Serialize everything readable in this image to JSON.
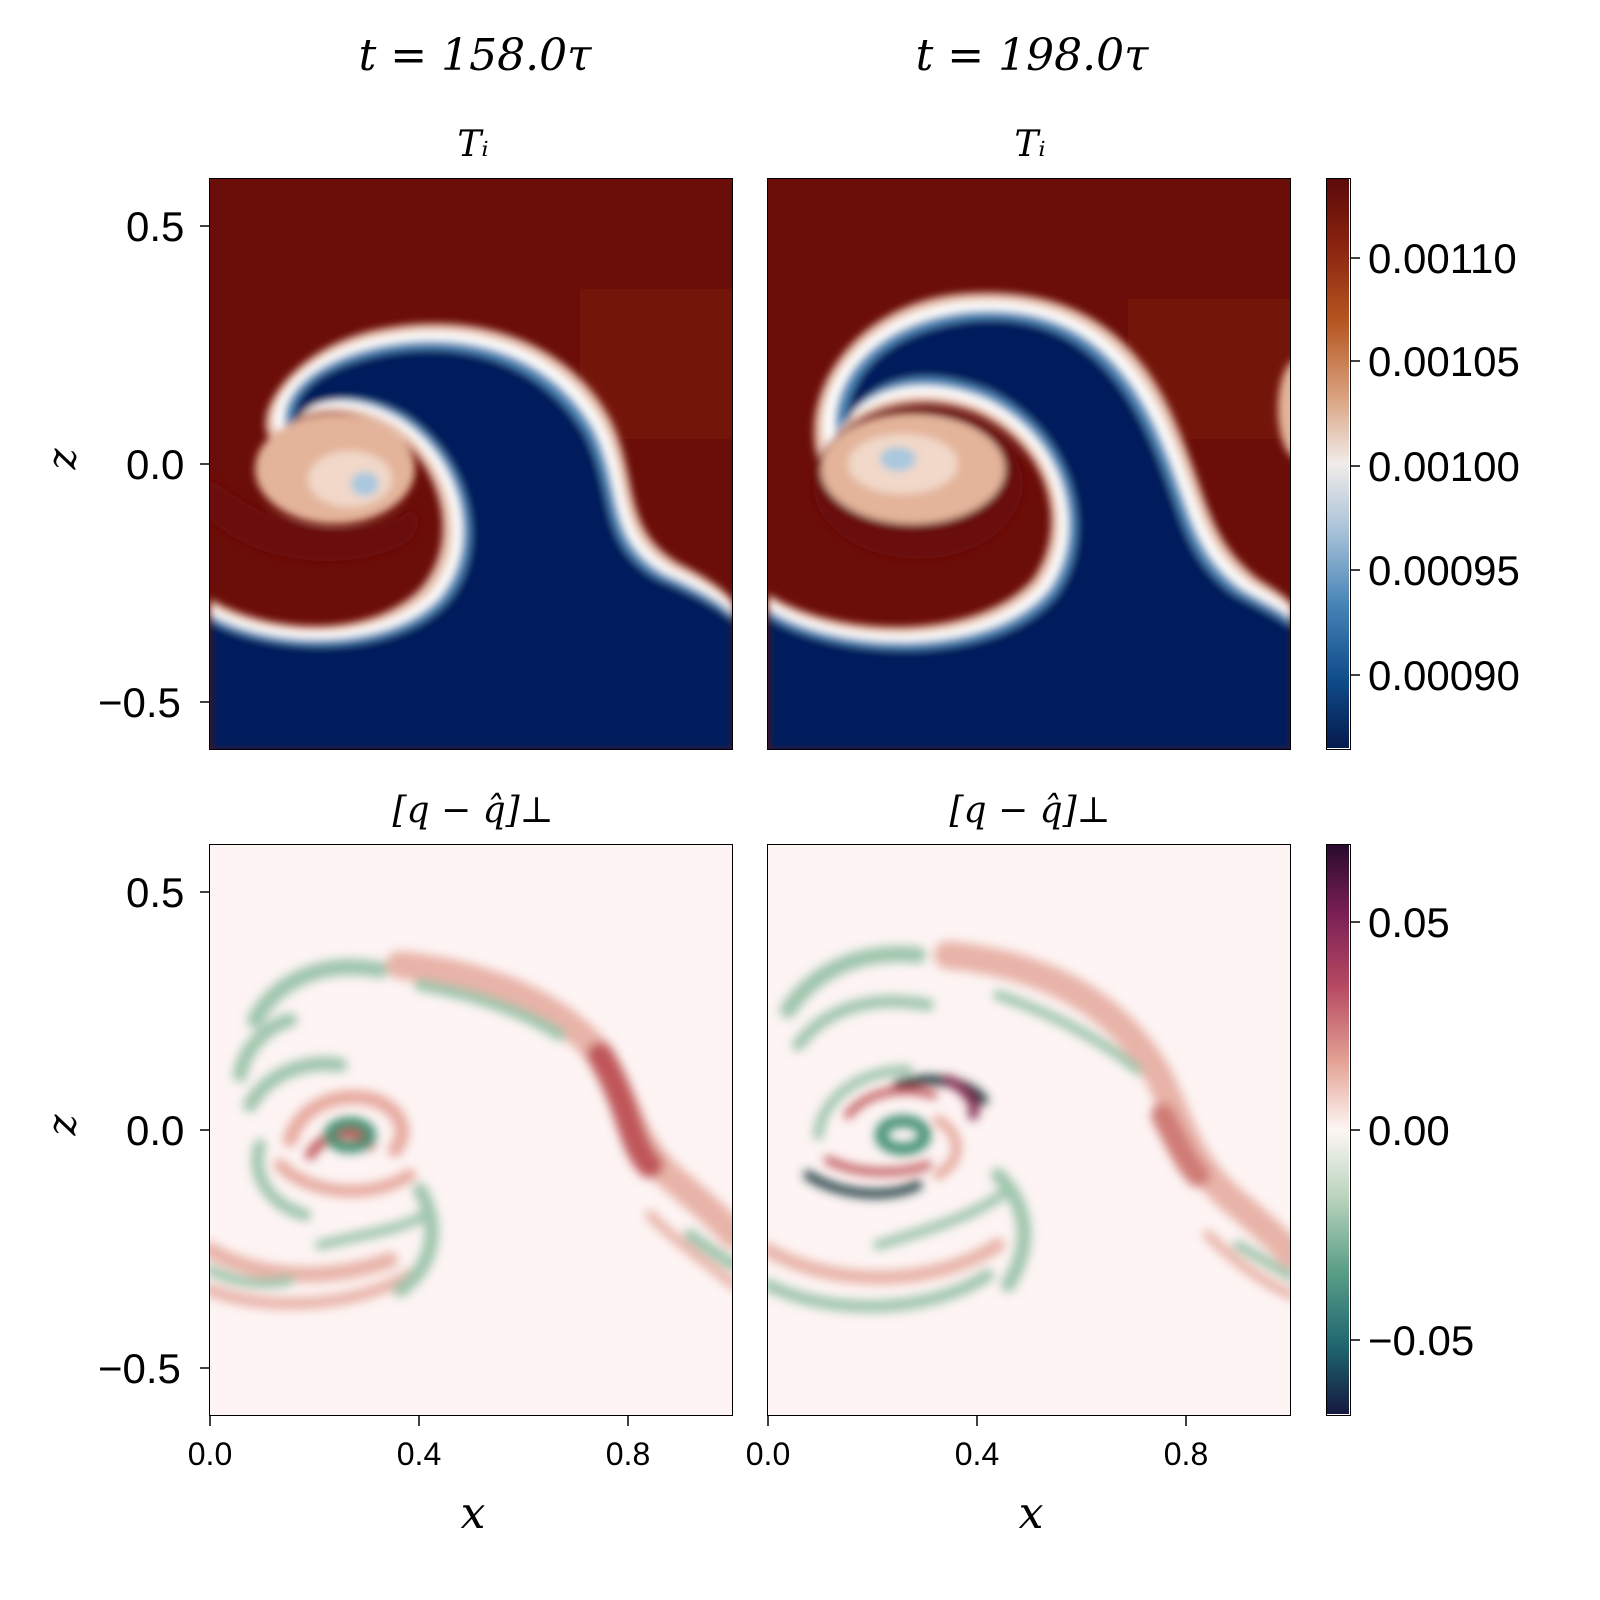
{
  "figure": {
    "columns": [
      {
        "time_label": "t = 158.0τ"
      },
      {
        "time_label": "t = 198.0τ"
      }
    ],
    "rows": [
      {
        "panel_title": "T_i",
        "display_title": "Tᵢ"
      },
      {
        "panel_title": "[q − q̂]⊥",
        "display_title": "[q − q̂]⊥"
      }
    ],
    "axis": {
      "xlabel": "x",
      "ylabel": "z"
    }
  },
  "chart_data": [
    {
      "type": "heatmap",
      "title": "T_i",
      "column_title": "t = 158.0τ",
      "xlabel": "",
      "ylabel": "z",
      "xlim": [
        0.0,
        1.0
      ],
      "ylim": [
        -0.6,
        0.6
      ],
      "yticks": [
        "0.5",
        "0.0",
        "−0.5"
      ],
      "colorbar_range": [
        0.000865,
        0.001135
      ],
      "colormap": "balance (blue-white-red)"
    },
    {
      "type": "heatmap",
      "title": "T_i",
      "column_title": "t = 198.0τ",
      "xlabel": "",
      "ylabel": "",
      "xlim": [
        0.0,
        1.0
      ],
      "ylim": [
        -0.6,
        0.6
      ],
      "colorbar_ticks": [
        "0.00110",
        "0.00105",
        "0.00100",
        "0.00095",
        "0.00090"
      ],
      "colorbar_range": [
        0.000865,
        0.001135
      ],
      "colormap": "balance (blue-white-red)"
    },
    {
      "type": "heatmap",
      "title": "[q − q̂]⊥",
      "column_title": "t = 158.0τ",
      "xlabel": "x",
      "ylabel": "z",
      "xlim": [
        0.0,
        1.0
      ],
      "ylim": [
        -0.6,
        0.6
      ],
      "xticks": [
        "0.0",
        "0.4",
        "0.8"
      ],
      "yticks": [
        "0.5",
        "0.0",
        "−0.5"
      ],
      "colorbar_range": [
        -0.068,
        0.068
      ],
      "colormap": "curl (green-white-red)"
    },
    {
      "type": "heatmap",
      "title": "[q − q̂]⊥",
      "column_title": "t = 198.0τ",
      "xlabel": "x",
      "ylabel": "",
      "xlim": [
        0.0,
        1.0
      ],
      "ylim": [
        -0.6,
        0.6
      ],
      "xticks": [
        "0.0",
        "0.4",
        "0.8"
      ],
      "colorbar_ticks": [
        "0.05",
        "0.00",
        "−0.05"
      ],
      "colorbar_range": [
        -0.068,
        0.068
      ],
      "colormap": "curl (green-white-red)"
    }
  ],
  "colors": {
    "Ti_high": "#6b0d08",
    "Ti_low": "#031a5c",
    "Ti_mid": "#f3eae6",
    "q_background": "#fdf4f3",
    "q_positive": "#c0565a",
    "q_negative": "#3f8f72",
    "q_strong_negative": "#1a3a40"
  }
}
